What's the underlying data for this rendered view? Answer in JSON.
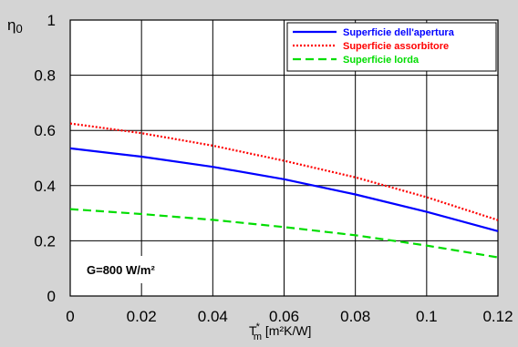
{
  "chart_data": {
    "type": "line",
    "ylabel_main": "η",
    "ylabel_sub": "0",
    "xlabel_main": "T",
    "xlabel_sup": "*",
    "xlabel_sub": "m",
    "xlabel_unit": " [m²K/W]",
    "xlim": [
      0,
      0.12
    ],
    "ylim": [
      0,
      1
    ],
    "xticks": [
      "0",
      "0.02",
      "0.04",
      "0.06",
      "0.08",
      "0.1",
      "0.12"
    ],
    "xtick_values": [
      0,
      0.02,
      0.04,
      0.06,
      0.08,
      0.1,
      0.12
    ],
    "yticks": [
      "0",
      "0.2",
      "0.4",
      "0.6",
      "0.8",
      "1"
    ],
    "ytick_values": [
      0,
      0.2,
      0.4,
      0.6,
      0.8,
      1.0
    ],
    "grid": true,
    "legend_position": "top-right",
    "annotation": "G=800 W/m²",
    "series": [
      {
        "name": "Superficie dell'apertura",
        "color": "#0000ff",
        "style": "solid",
        "x": [
          0,
          0.02,
          0.04,
          0.06,
          0.08,
          0.1,
          0.12
        ],
        "y": [
          0.535,
          0.505,
          0.468,
          0.423,
          0.368,
          0.305,
          0.235
        ]
      },
      {
        "name": "Superficie assorbitore",
        "color": "#ff0000",
        "style": "dotted",
        "x": [
          0,
          0.02,
          0.04,
          0.06,
          0.08,
          0.1,
          0.12
        ],
        "y": [
          0.625,
          0.59,
          0.545,
          0.49,
          0.43,
          0.358,
          0.275
        ]
      },
      {
        "name": "Superficie lorda",
        "color": "#00dd00",
        "style": "dashed",
        "x": [
          0,
          0.02,
          0.04,
          0.06,
          0.08,
          0.1,
          0.12
        ],
        "y": [
          0.315,
          0.297,
          0.276,
          0.25,
          0.22,
          0.183,
          0.14
        ]
      }
    ]
  }
}
